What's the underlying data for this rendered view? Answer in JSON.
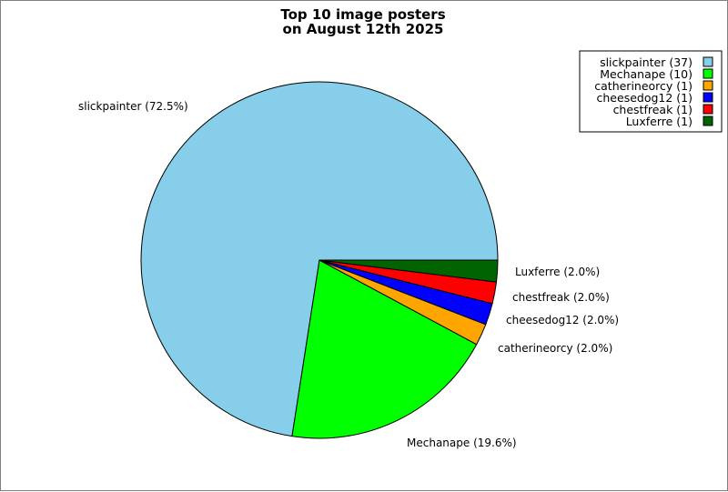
{
  "chart_data": {
    "type": "pie",
    "title_lines": [
      "Top 10 image posters",
      "on August 12th 2025"
    ],
    "slices": [
      {
        "name": "slickpainter",
        "value": 37,
        "percent": "72.5%",
        "color": "#87CEEB",
        "label": "slickpainter (72.5%)",
        "legend": "slickpainter (37)"
      },
      {
        "name": "Mechanape",
        "value": 10,
        "percent": "19.6%",
        "color": "#00FF00",
        "label": "Mechanape (19.6%)",
        "legend": "Mechanape (10)"
      },
      {
        "name": "catherineorcy",
        "value": 1,
        "percent": "2.0%",
        "color": "#FFA500",
        "label": "catherineorcy (2.0%)",
        "legend": "catherineorcy (1)"
      },
      {
        "name": "cheesedog12",
        "value": 1,
        "percent": "2.0%",
        "color": "#0000FF",
        "label": "cheesedog12 (2.0%)",
        "legend": "cheesedog12 (1)"
      },
      {
        "name": "chestfreak",
        "value": 1,
        "percent": "2.0%",
        "color": "#FF0000",
        "label": "chestfreak (2.0%)",
        "legend": "chestfreak (1)"
      },
      {
        "name": "Luxferre",
        "value": 1,
        "percent": "2.0%",
        "color": "#006400",
        "label": "Luxferre (2.0%)",
        "legend": "Luxferre (1)"
      }
    ],
    "legend_position": "top-right",
    "direction": "counterclockwise from 3 o'clock"
  }
}
